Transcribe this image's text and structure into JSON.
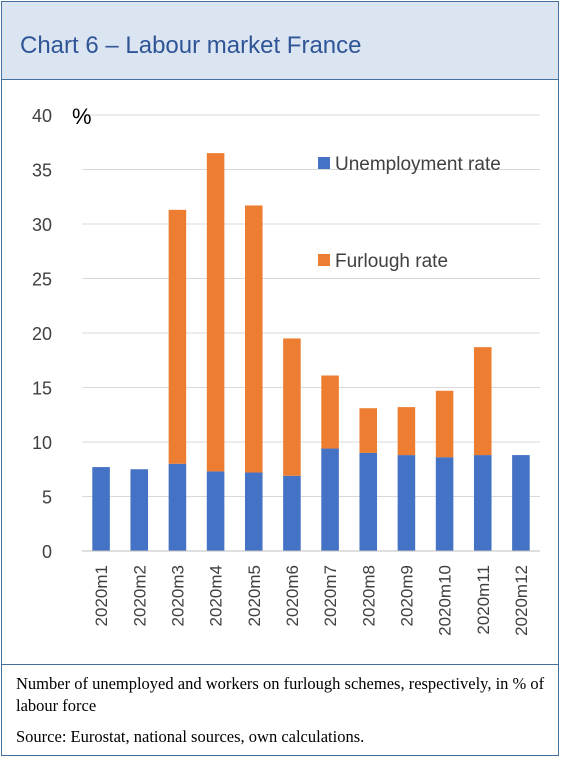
{
  "header": {
    "title": "Chart 6 – Labour market France"
  },
  "chart_data": {
    "type": "bar",
    "stacked": true,
    "categories": [
      "2020m1",
      "2020m2",
      "2020m3",
      "2020m4",
      "2020m5",
      "2020m6",
      "2020m7",
      "2020m8",
      "2020m9",
      "2020m10",
      "2020m11",
      "2020m12"
    ],
    "series": [
      {
        "name": "Unemployment rate",
        "color": "#4472c4",
        "values": [
          7.7,
          7.5,
          8.0,
          7.3,
          7.2,
          6.9,
          9.4,
          9.0,
          8.8,
          8.6,
          8.8,
          8.8
        ]
      },
      {
        "name": "Furlough rate",
        "color": "#ed7d31",
        "values": [
          0,
          0,
          23.3,
          29.2,
          24.5,
          12.6,
          6.7,
          4.1,
          4.4,
          6.1,
          9.9,
          0
        ]
      }
    ],
    "ylabel": "%",
    "ylim": [
      0,
      40
    ],
    "yticks": [
      0,
      5,
      10,
      15,
      20,
      25,
      30,
      35,
      40
    ],
    "grid": true,
    "legend": "top-right"
  },
  "footer": {
    "note": "Number of unemployed and workers on furlough schemes, respectively, in % of labour force",
    "source": "Source: Eurostat, national sources, own calculations."
  }
}
